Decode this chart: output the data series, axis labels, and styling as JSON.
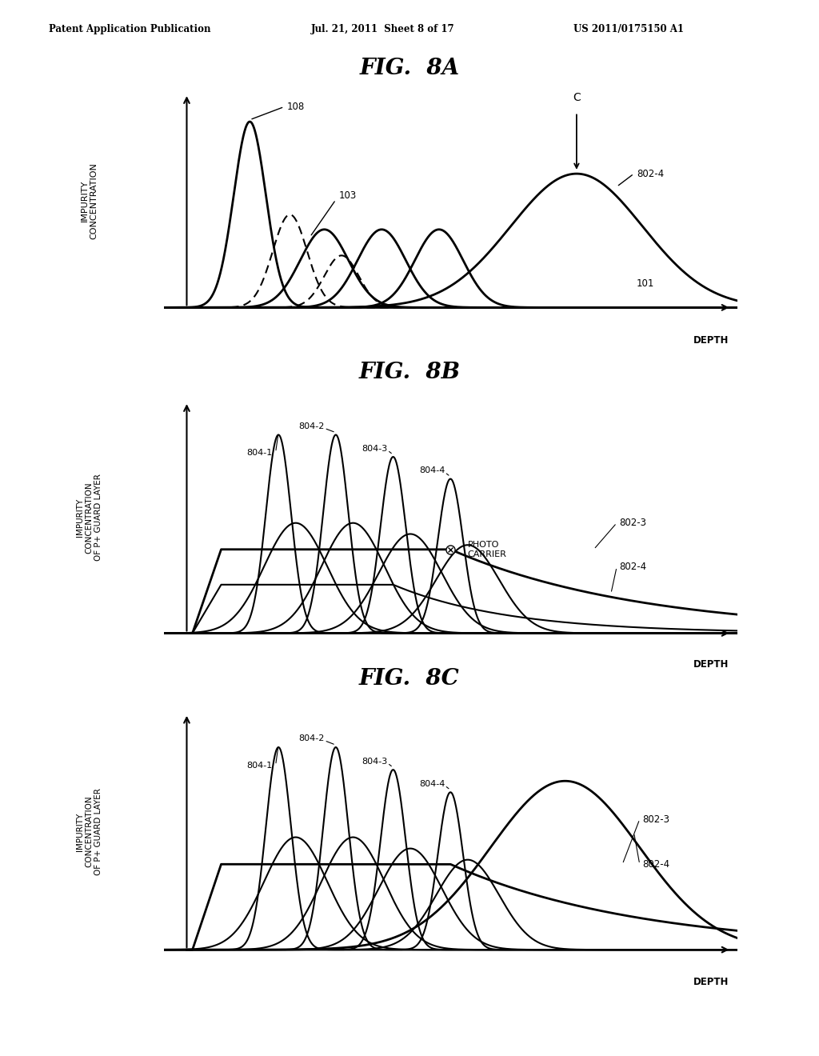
{
  "title_header_left": "Patent Application Publication",
  "title_header_mid": "Jul. 21, 2011  Sheet 8 of 17",
  "title_header_right": "US 2011/0175150 A1",
  "fig8a_title": "FIG.  8A",
  "fig8b_title": "FIG.  8B",
  "fig8c_title": "FIG.  8C",
  "bg_color": "#ffffff"
}
